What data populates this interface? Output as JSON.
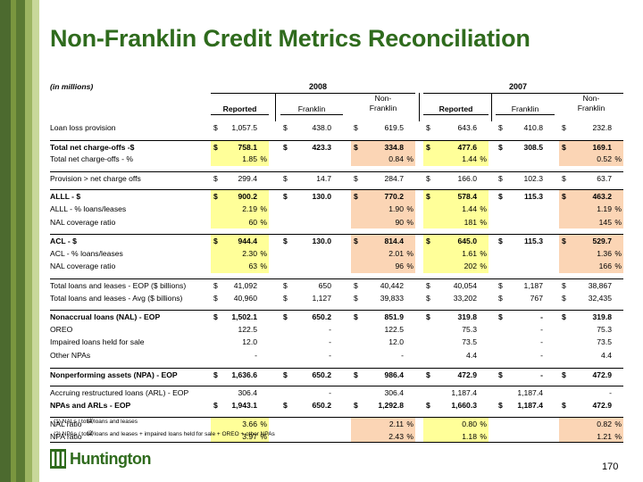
{
  "title": "Non-Franklin Credit Metrics Reconciliation",
  "units": "(in millions)",
  "years": [
    "2008",
    "2007"
  ],
  "col_headers": [
    "Reported",
    "Franklin",
    "Non-\nFranklin",
    "Reported",
    "Franklin",
    "Non-\nFranklin"
  ],
  "rows": [
    {
      "label": "Loan loss provision",
      "bold": false,
      "top": 0,
      "cells": [
        {
          "d": "$",
          "v": "1,057.5"
        },
        {
          "d": "$",
          "v": "438.0"
        },
        {
          "d": "$",
          "v": "619.5"
        },
        {
          "d": "$",
          "v": "643.6"
        },
        {
          "d": "$",
          "v": "410.8"
        },
        {
          "d": "$",
          "v": "232.8"
        }
      ]
    },
    {
      "label": "Total net charge-offs -$",
      "bold": true,
      "top": 1,
      "cells": [
        {
          "d": "$",
          "v": "758.1",
          "bg": "y"
        },
        {
          "d": "$",
          "v": "423.3"
        },
        {
          "d": "$",
          "v": "334.8",
          "bg": "p"
        },
        {
          "d": "$",
          "v": "477.6",
          "bg": "y"
        },
        {
          "d": "$",
          "v": "308.5"
        },
        {
          "d": "$",
          "v": "169.1",
          "bg": "p"
        }
      ]
    },
    {
      "label": "Total net charge-offs - %",
      "bold": false,
      "cells": [
        {
          "v": "1.85",
          "pc": "%",
          "bg": "y"
        },
        {
          "v": ""
        },
        {
          "v": "0.84",
          "pc": "%",
          "bg": "p"
        },
        {
          "v": "1.44",
          "pc": "%",
          "bg": "y"
        },
        {
          "v": ""
        },
        {
          "v": "0.52",
          "pc": "%",
          "bg": "p"
        }
      ]
    },
    {
      "label": "Provision > net charge offs",
      "bold": false,
      "top": 1,
      "cells": [
        {
          "d": "$",
          "v": "299.4"
        },
        {
          "d": "$",
          "v": "14.7"
        },
        {
          "d": "$",
          "v": "284.7"
        },
        {
          "d": "$",
          "v": "166.0"
        },
        {
          "d": "$",
          "v": "102.3"
        },
        {
          "d": "$",
          "v": "63.7"
        }
      ]
    },
    {
      "label": "ALLL - $",
      "bold": true,
      "top": 1,
      "cells": [
        {
          "d": "$",
          "v": "900.2",
          "bg": "y"
        },
        {
          "d": "$",
          "v": "130.0"
        },
        {
          "d": "$",
          "v": "770.2",
          "bg": "p"
        },
        {
          "d": "$",
          "v": "578.4",
          "bg": "y"
        },
        {
          "d": "$",
          "v": "115.3"
        },
        {
          "d": "$",
          "v": "463.2",
          "bg": "p"
        }
      ]
    },
    {
      "label": "ALLL - % loans/leases",
      "bold": false,
      "cells": [
        {
          "v": "2.19",
          "pc": "%",
          "bg": "y"
        },
        {
          "v": ""
        },
        {
          "v": "1.90",
          "pc": "%",
          "bg": "p"
        },
        {
          "v": "1.44",
          "pc": "%",
          "bg": "y"
        },
        {
          "v": ""
        },
        {
          "v": "1.19",
          "pc": "%",
          "bg": "p"
        }
      ]
    },
    {
      "label": "NAL coverage ratio",
      "bold": false,
      "cells": [
        {
          "v": "60",
          "pc": "%",
          "bg": "y"
        },
        {
          "v": ""
        },
        {
          "v": "90",
          "pc": "%",
          "bg": "p"
        },
        {
          "v": "181",
          "pc": "%",
          "bg": "y"
        },
        {
          "v": ""
        },
        {
          "v": "145",
          "pc": "%",
          "bg": "p"
        }
      ]
    },
    {
      "label": "ACL - $",
      "bold": true,
      "top": 1,
      "cells": [
        {
          "d": "$",
          "v": "944.4",
          "bg": "y"
        },
        {
          "d": "$",
          "v": "130.0"
        },
        {
          "d": "$",
          "v": "814.4",
          "bg": "p"
        },
        {
          "d": "$",
          "v": "645.0",
          "bg": "y"
        },
        {
          "d": "$",
          "v": "115.3"
        },
        {
          "d": "$",
          "v": "529.7",
          "bg": "p"
        }
      ]
    },
    {
      "label": "ACL - % loans/leases",
      "bold": false,
      "cells": [
        {
          "v": "2.30",
          "pc": "%",
          "bg": "y"
        },
        {
          "v": ""
        },
        {
          "v": "2.01",
          "pc": "%",
          "bg": "p"
        },
        {
          "v": "1.61",
          "pc": "%",
          "bg": "y"
        },
        {
          "v": ""
        },
        {
          "v": "1.36",
          "pc": "%",
          "bg": "p"
        }
      ]
    },
    {
      "label": "NAL coverage ratio",
      "bold": false,
      "cells": [
        {
          "v": "63",
          "pc": "%",
          "bg": "y"
        },
        {
          "v": ""
        },
        {
          "v": "96",
          "pc": "%",
          "bg": "p"
        },
        {
          "v": "202",
          "pc": "%",
          "bg": "y"
        },
        {
          "v": ""
        },
        {
          "v": "166",
          "pc": "%",
          "bg": "p"
        }
      ]
    },
    {
      "label": "Total loans and leases - EOP ($ billions)",
      "bold": false,
      "top": 1,
      "cells": [
        {
          "d": "$",
          "v": "41,092"
        },
        {
          "d": "$",
          "v": "650"
        },
        {
          "d": "$",
          "v": "40,442"
        },
        {
          "d": "$",
          "v": "40,054"
        },
        {
          "d": "$",
          "v": "1,187"
        },
        {
          "d": "$",
          "v": "38,867"
        }
      ]
    },
    {
      "label": "Total loans and leases - Avg ($ billions)",
      "bold": false,
      "cells": [
        {
          "d": "$",
          "v": "40,960"
        },
        {
          "d": "$",
          "v": "1,127"
        },
        {
          "d": "$",
          "v": "39,833"
        },
        {
          "d": "$",
          "v": "33,202"
        },
        {
          "d": "$",
          "v": "767"
        },
        {
          "d": "$",
          "v": "32,435"
        }
      ]
    },
    {
      "label": "Nonaccrual loans (NAL) - EOP",
      "bold": true,
      "top": 1,
      "cells": [
        {
          "d": "$",
          "v": "1,502.1"
        },
        {
          "d": "$",
          "v": "650.2"
        },
        {
          "d": "$",
          "v": "851.9"
        },
        {
          "d": "$",
          "v": "319.8"
        },
        {
          "d": "$",
          "v": "-"
        },
        {
          "d": "$",
          "v": "319.8"
        }
      ]
    },
    {
      "label": "OREO",
      "bold": false,
      "cells": [
        {
          "v": "122.5"
        },
        {
          "v": "-"
        },
        {
          "v": "122.5"
        },
        {
          "v": "75.3"
        },
        {
          "v": "-"
        },
        {
          "v": "75.3"
        }
      ]
    },
    {
      "label": "Impaired loans held for sale",
      "bold": false,
      "cells": [
        {
          "v": "12.0"
        },
        {
          "v": "-"
        },
        {
          "v": "12.0"
        },
        {
          "v": "73.5"
        },
        {
          "v": "-"
        },
        {
          "v": "73.5"
        }
      ]
    },
    {
      "label": "Other NPAs",
      "bold": false,
      "cells": [
        {
          "v": "-"
        },
        {
          "v": "-"
        },
        {
          "v": "-"
        },
        {
          "v": "4.4"
        },
        {
          "v": "-"
        },
        {
          "v": "4.4"
        }
      ]
    },
    {
      "label": "Nonperforming assets (NPA) - EOP",
      "bold": true,
      "top": 1,
      "cells": [
        {
          "d": "$",
          "v": "1,636.6"
        },
        {
          "d": "$",
          "v": "650.2"
        },
        {
          "d": "$",
          "v": "986.4"
        },
        {
          "d": "$",
          "v": "472.9"
        },
        {
          "d": "$",
          "v": "-"
        },
        {
          "d": "$",
          "v": "472.9"
        }
      ]
    },
    {
      "label": "Accruing restructured loans (ARL) - EOP",
      "bold": false,
      "top": 1,
      "cells": [
        {
          "v": "306.4"
        },
        {
          "v": "-"
        },
        {
          "v": "306.4"
        },
        {
          "v": "1,187.4"
        },
        {
          "v": "1,187.4"
        },
        {
          "v": "-"
        }
      ]
    },
    {
      "label": "NPAs and ARLs - EOP",
      "bold": true,
      "cells": [
        {
          "d": "$",
          "v": "1,943.1"
        },
        {
          "d": "$",
          "v": "650.2"
        },
        {
          "d": "$",
          "v": "1,292.8"
        },
        {
          "d": "$",
          "v": "1,660.3"
        },
        {
          "d": "$",
          "v": "1,187.4"
        },
        {
          "d": "$",
          "v": "472.9"
        }
      ]
    },
    {
      "label": "NAL ratio",
      "sup": "(1)",
      "bold": false,
      "top": 1,
      "cells": [
        {
          "v": "3.66",
          "pc": "%",
          "bg": "y"
        },
        {
          "v": ""
        },
        {
          "v": "2.11",
          "pc": "%",
          "bg": "p"
        },
        {
          "v": "0.80",
          "pc": "%",
          "bg": "y"
        },
        {
          "v": ""
        },
        {
          "v": "0.82",
          "pc": "%",
          "bg": "p"
        }
      ]
    },
    {
      "label": "NPA ratio",
      "sup": "(2)",
      "bold": false,
      "bottom": 1,
      "cells": [
        {
          "v": "3.97",
          "pc": "%",
          "bg": "y"
        },
        {
          "v": ""
        },
        {
          "v": "2.43",
          "pc": "%",
          "bg": "p"
        },
        {
          "v": "1.18",
          "pc": "%",
          "bg": "y"
        },
        {
          "v": ""
        },
        {
          "v": "1.21",
          "pc": "%",
          "bg": "p"
        }
      ]
    }
  ],
  "notes": [
    "(1) NALs / total loans and leases",
    "(2) NPAs / total loans and leases + impaired loans held for sale + OREO + other NPAs"
  ],
  "logo_text": "Huntington",
  "page_number": "170",
  "colors": {
    "title": "#2f6b1d",
    "highlight_yellow": "#ffff99",
    "highlight_peach": "#fbd5b5"
  }
}
